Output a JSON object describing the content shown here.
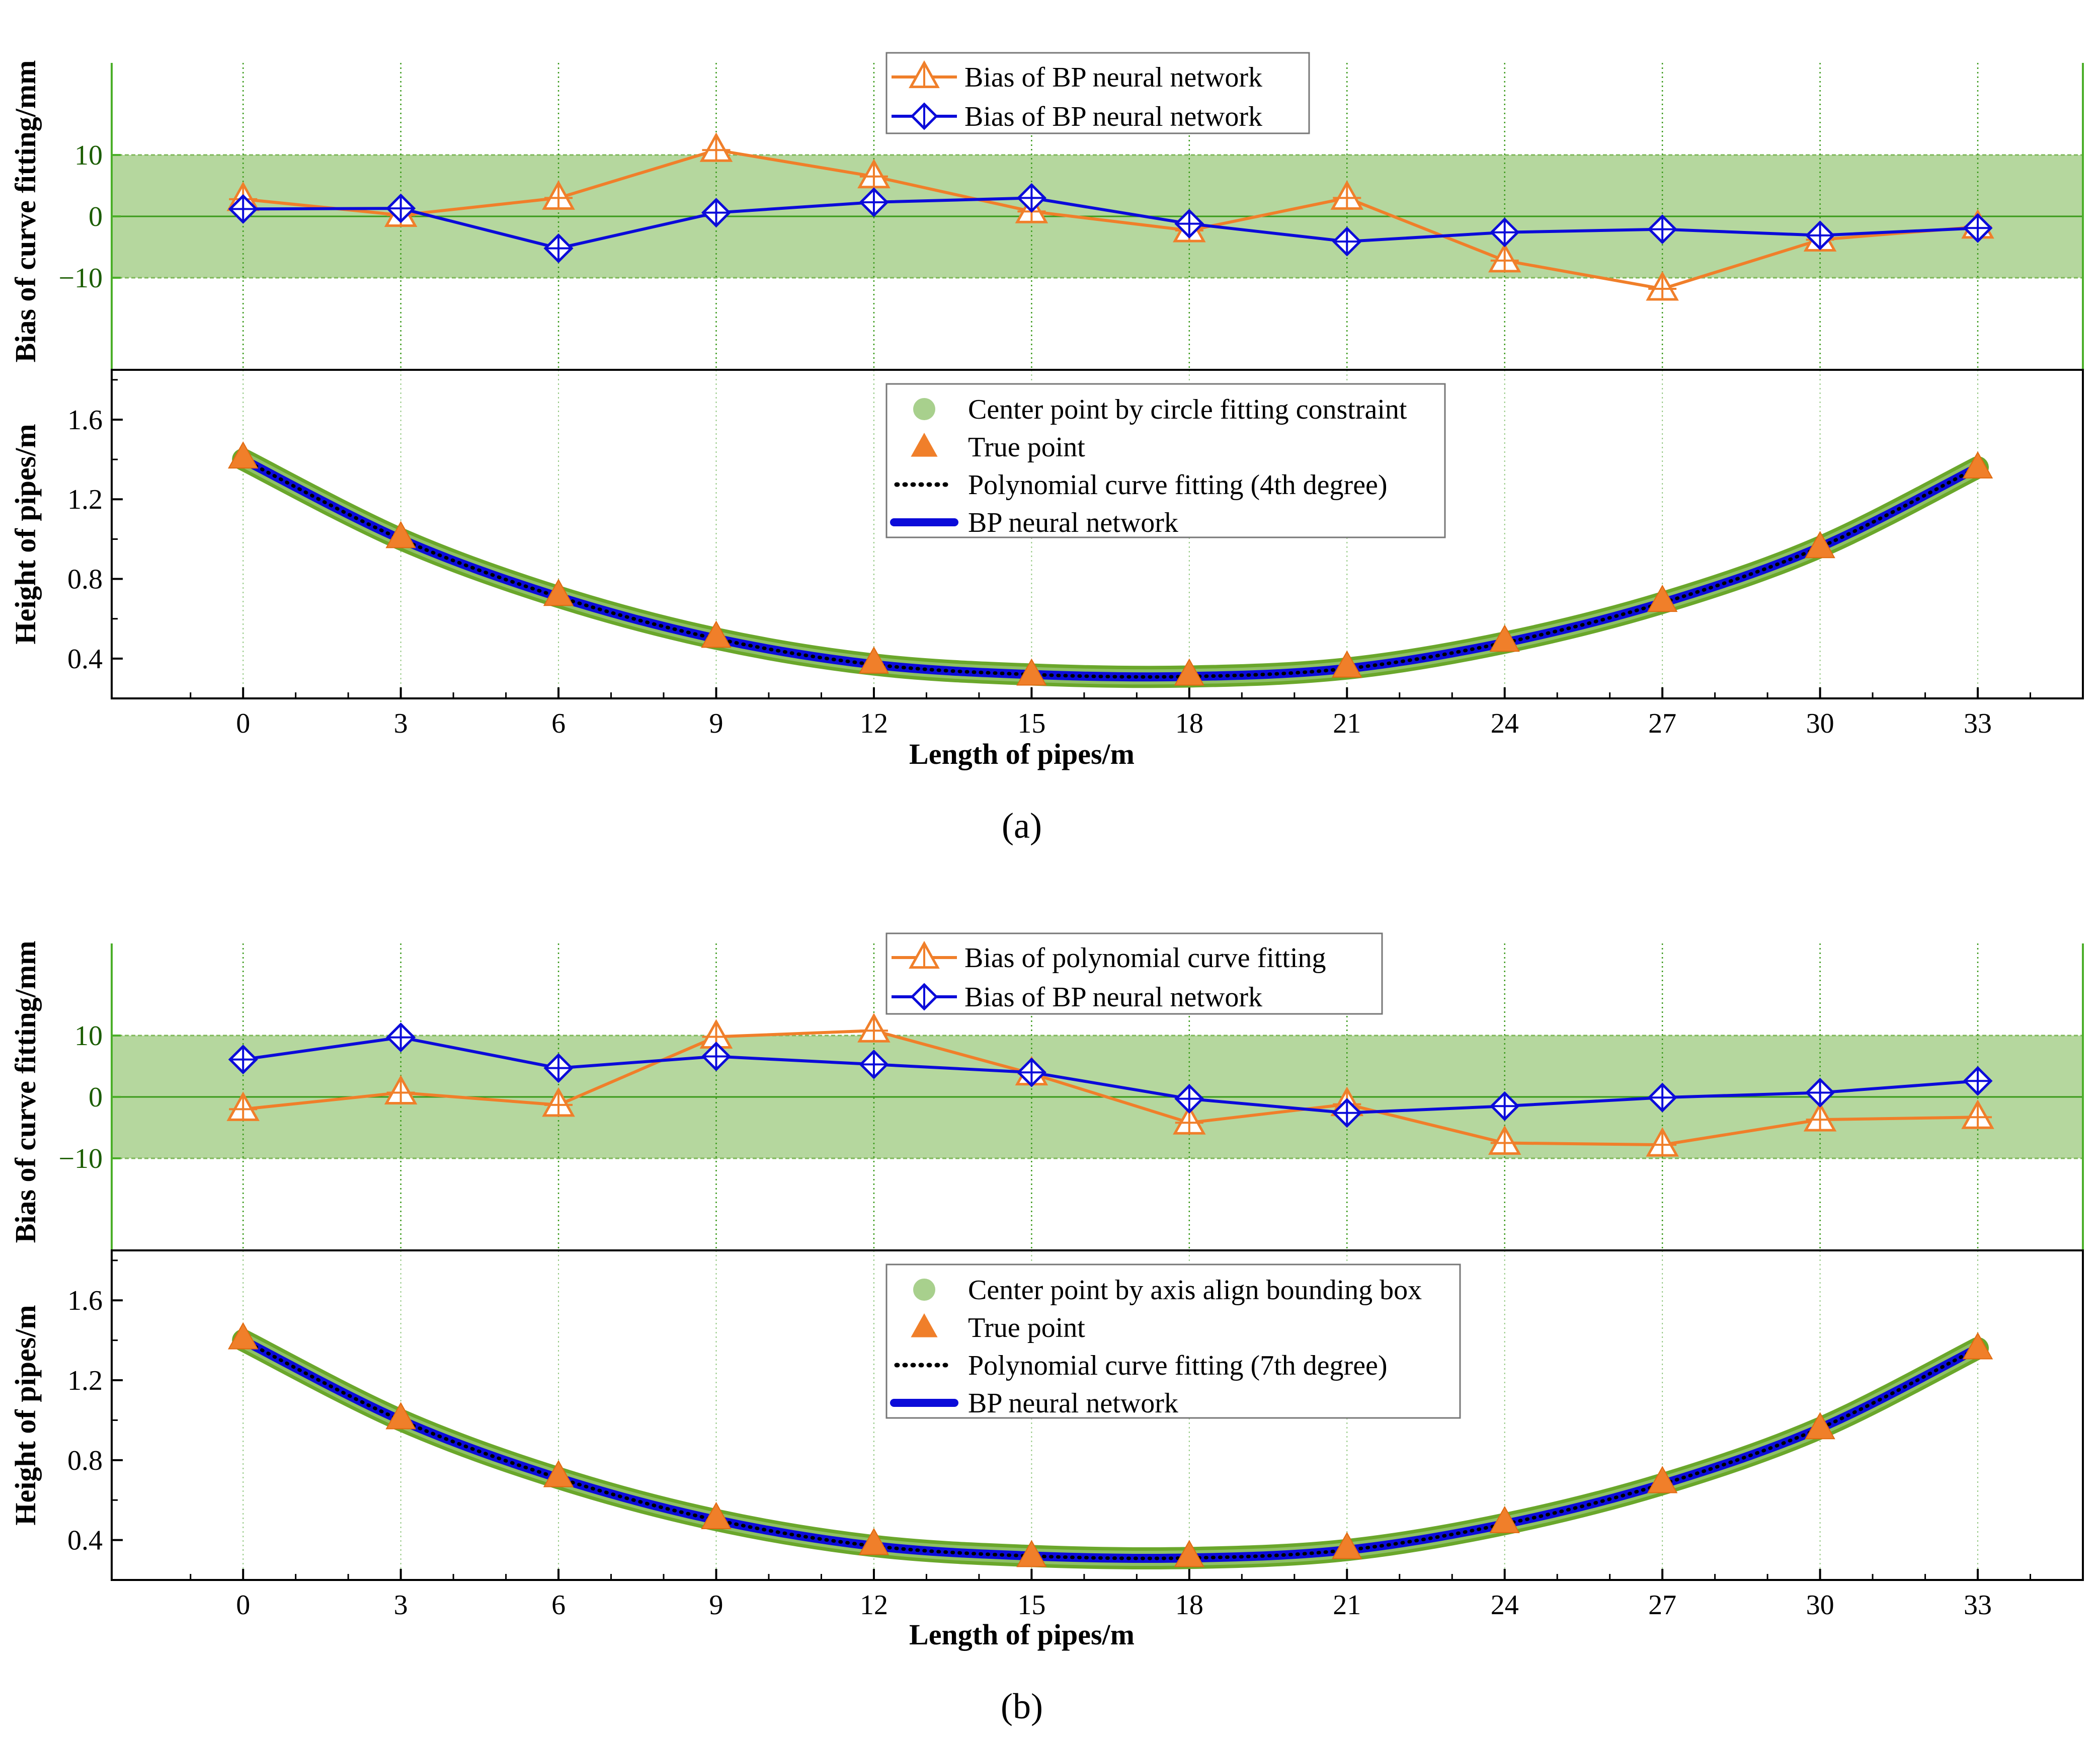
{
  "figure": {
    "colors": {
      "orange": "#f07f2a",
      "blue": "#0b0bd9",
      "band_fill": "#a8d08d",
      "band_edge": "#7fb85a",
      "green_line": "#3a9a1a",
      "green_fit": "#6aa72b",
      "center_dot": "#a8d08d",
      "axis_green": "#4caf2a",
      "black": "#000000"
    }
  },
  "chart_data": [
    {
      "panel": "a",
      "caption": "(a)",
      "top": {
        "type": "line",
        "ylabel": "Bias of curve fitting/mm",
        "ylim": [
          -25,
          25
        ],
        "yticks": [
          10,
          0,
          -10
        ],
        "ytick_labels": [
          "10",
          "0",
          "−10"
        ],
        "band": [
          -10,
          10
        ],
        "legend": [
          "Bias of BP neural network",
          "Bias of BP neural network"
        ],
        "x": [
          0,
          3,
          6,
          9,
          12,
          15,
          18,
          21,
          24,
          27,
          30,
          33
        ],
        "series": [
          {
            "name": "Bias of BP neural network",
            "color_key": "orange",
            "marker": "triangle",
            "values": [
              2.8,
              0.2,
              3.0,
              10.8,
              6.5,
              0.8,
              -2.3,
              3.0,
              -7.2,
              -11.8,
              -3.8,
              -1.7
            ]
          },
          {
            "name": "Bias of BP neural network",
            "color_key": "blue",
            "marker": "diamond",
            "values": [
              1.2,
              1.3,
              -5.2,
              0.6,
              2.3,
              3.0,
              -1.2,
              -4.1,
              -2.6,
              -2.1,
              -3.1,
              -1.9
            ]
          }
        ]
      },
      "bottom": {
        "type": "line",
        "xlabel": "Length of pipes/m",
        "ylabel": "Height of pipes/m",
        "xlim": [
          -2.5,
          35
        ],
        "ylim": [
          0.2,
          1.85
        ],
        "xticks": [
          0,
          3,
          6,
          9,
          12,
          15,
          18,
          21,
          24,
          27,
          30,
          33
        ],
        "xtick_labels": [
          "0",
          "3",
          "6",
          "9",
          "12",
          "15",
          "18",
          "21",
          "24",
          "27",
          "30",
          "33"
        ],
        "yticks": [
          1.6,
          1.2,
          0.8,
          0.4
        ],
        "ytick_labels": [
          "1.6",
          "1.2",
          "0.8",
          "0.4"
        ],
        "legend": [
          "Center point by circle fitting constraint",
          "True point",
          "Polynomial curve fitting (4th degree)",
          "BP neural network"
        ],
        "curve_x": [
          0,
          3,
          6,
          9,
          12,
          15,
          18,
          21,
          24,
          27,
          30,
          33
        ],
        "curve_y": [
          1.4,
          1.0,
          0.71,
          0.5,
          0.37,
          0.32,
          0.31,
          0.35,
          0.48,
          0.68,
          0.96,
          1.36
        ],
        "true_points": [
          1.41,
          1.01,
          0.72,
          0.51,
          0.38,
          0.32,
          0.32,
          0.36,
          0.49,
          0.69,
          0.96,
          1.36
        ]
      }
    },
    {
      "panel": "b",
      "caption": "(b)",
      "top": {
        "type": "line",
        "ylabel": "Bias of curve fitting/mm",
        "ylim": [
          -25,
          25
        ],
        "yticks": [
          10,
          0,
          -10
        ],
        "ytick_labels": [
          "10",
          "0",
          "−10"
        ],
        "band": [
          -10,
          10
        ],
        "legend": [
          "Bias of polynomial curve fitting",
          "Bias of BP neural network"
        ],
        "x": [
          0,
          3,
          6,
          9,
          12,
          15,
          18,
          21,
          24,
          27,
          30,
          33
        ],
        "series": [
          {
            "name": "Bias of polynomial curve fitting",
            "color_key": "orange",
            "marker": "triangle",
            "values": [
              -2.0,
              0.7,
              -1.3,
              9.8,
              10.8,
              3.8,
              -4.2,
              -1.2,
              -7.5,
              -7.8,
              -3.7,
              -3.3
            ]
          },
          {
            "name": "Bias of BP neural network",
            "color_key": "blue",
            "marker": "diamond",
            "values": [
              6.1,
              9.7,
              4.7,
              6.6,
              5.3,
              4.0,
              -0.3,
              -2.6,
              -1.5,
              -0.1,
              0.7,
              2.6
            ]
          }
        ]
      },
      "bottom": {
        "type": "line",
        "xlabel": "Length of pipes/m",
        "ylabel": "Height of pipes/m",
        "xlim": [
          -2.5,
          35
        ],
        "ylim": [
          0.2,
          1.85
        ],
        "xticks": [
          0,
          3,
          6,
          9,
          12,
          15,
          18,
          21,
          24,
          27,
          30,
          33
        ],
        "xtick_labels": [
          "0",
          "3",
          "6",
          "9",
          "12",
          "15",
          "18",
          "21",
          "24",
          "27",
          "30",
          "33"
        ],
        "yticks": [
          1.6,
          1.2,
          0.8,
          0.4
        ],
        "ytick_labels": [
          "1.6",
          "1.2",
          "0.8",
          "0.4"
        ],
        "legend": [
          "Center point by axis align bounding box",
          "True point",
          "Polynomial curve fitting (7th degree)",
          "BP neural network"
        ],
        "curve_x": [
          0,
          3,
          6,
          9,
          12,
          15,
          18,
          21,
          24,
          27,
          30,
          33
        ],
        "curve_y": [
          1.4,
          1.0,
          0.71,
          0.5,
          0.37,
          0.32,
          0.31,
          0.35,
          0.48,
          0.68,
          0.96,
          1.36
        ],
        "true_points": [
          1.41,
          1.01,
          0.72,
          0.51,
          0.38,
          0.32,
          0.32,
          0.36,
          0.49,
          0.69,
          0.96,
          1.36
        ]
      }
    }
  ]
}
